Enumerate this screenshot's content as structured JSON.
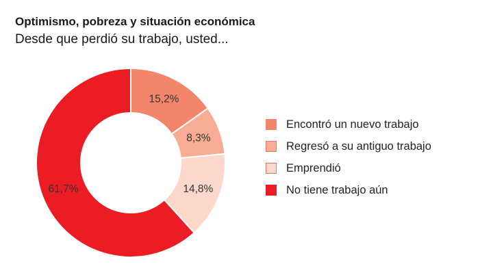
{
  "title": "Optimismo, pobreza y situación económica",
  "subtitle": "Desde que perdió su trabajo, usted...",
  "chart_data": {
    "type": "pie",
    "donut": true,
    "slices": [
      {
        "label": "Encontró un nuevo trabajo",
        "value": 15.2,
        "value_label": "15,2%",
        "color": "#f2856a",
        "border": "#f2856a"
      },
      {
        "label": "Regresó a su antiguo trabajo",
        "value": 8.3,
        "value_label": "8,3%",
        "color": "#f9ac94",
        "border": "#e07a62"
      },
      {
        "label": "Emprendió",
        "value": 14.8,
        "value_label": "14,8%",
        "color": "#fcd8cb",
        "border": "#e07a62"
      },
      {
        "label": "No tiene trabajo aún",
        "value": 61.7,
        "value_label": "61,7%",
        "color": "#ec1c24",
        "border": "#ec1c24"
      }
    ],
    "legend_position": "right"
  }
}
